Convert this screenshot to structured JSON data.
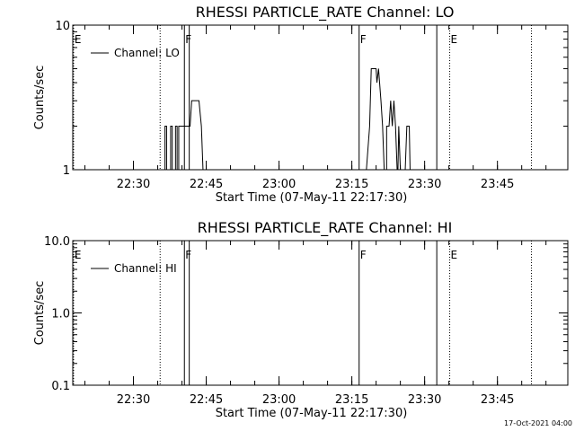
{
  "footer": {
    "timestamp": "17-Oct-2021 04:00"
  },
  "chart_data": [
    {
      "type": "line",
      "title": "RHESSI PARTICLE_RATE Channel: LO",
      "xlabel": "Start Time (07-May-11 22:17:30)",
      "ylabel": "Counts/sec",
      "yscale": "log",
      "ylim": [
        1,
        10
      ],
      "yticks": [
        1,
        10
      ],
      "ytick_labels": [
        "1",
        "10"
      ],
      "xlim": [
        "22:17:30",
        "23:59:30"
      ],
      "xticks": [
        "22:30",
        "22:45",
        "23:00",
        "23:15",
        "23:30",
        "23:45"
      ],
      "legend": {
        "position": "top-left",
        "entries": [
          "Channel: LO"
        ]
      },
      "markers": [
        {
          "time": "22:17:40",
          "label": "E",
          "style": "dotted"
        },
        {
          "time": "22:35:30",
          "label": "",
          "style": "dotted"
        },
        {
          "time": "22:40:30",
          "label": "F",
          "style": "solid"
        },
        {
          "time": "22:41:30",
          "label": "",
          "style": "solid"
        },
        {
          "time": "23:16:30",
          "label": "F",
          "style": "solid"
        },
        {
          "time": "23:32:30",
          "label": "",
          "style": "solid"
        },
        {
          "time": "23:35:10",
          "label": "E",
          "style": "dotted"
        },
        {
          "time": "23:52:00",
          "label": "",
          "style": "dotted"
        }
      ],
      "series": [
        {
          "name": "Channel: LO",
          "points": [
            [
              "22:35:00",
              1
            ],
            [
              "22:36:30",
              1
            ],
            [
              "22:36:30",
              2
            ],
            [
              "22:36:50",
              2
            ],
            [
              "22:36:50",
              1
            ],
            [
              "22:37:40",
              1
            ],
            [
              "22:37:40",
              2
            ],
            [
              "22:38:00",
              2
            ],
            [
              "22:38:00",
              1
            ],
            [
              "22:38:40",
              1
            ],
            [
              "22:38:40",
              2
            ],
            [
              "22:39:00",
              2
            ],
            [
              "22:39:00",
              1
            ],
            [
              "22:39:20",
              1
            ],
            [
              "22:39:20",
              2
            ],
            [
              "22:41:40",
              2
            ],
            [
              "22:42:00",
              3
            ],
            [
              "22:43:30",
              3
            ],
            [
              "22:44:00",
              2
            ],
            [
              "22:44:20",
              1
            ],
            [
              "23:18:00",
              1
            ],
            [
              "23:18:40",
              2
            ],
            [
              "23:19:00",
              5
            ],
            [
              "23:20:00",
              5
            ],
            [
              "23:20:10",
              4
            ],
            [
              "23:20:30",
              5
            ],
            [
              "23:21:00",
              3
            ],
            [
              "23:21:20",
              2
            ],
            [
              "23:21:40",
              1
            ],
            [
              "23:22:10",
              1
            ],
            [
              "23:22:10",
              2
            ],
            [
              "23:22:40",
              2
            ],
            [
              "23:23:00",
              3
            ],
            [
              "23:23:20",
              2
            ],
            [
              "23:23:40",
              3
            ],
            [
              "23:24:00",
              2
            ],
            [
              "23:24:20",
              1
            ],
            [
              "23:24:30",
              1
            ],
            [
              "23:24:40",
              2
            ],
            [
              "23:25:00",
              1
            ],
            [
              "23:26:00",
              1
            ],
            [
              "23:26:20",
              2
            ],
            [
              "23:26:50",
              2
            ],
            [
              "23:27:00",
              1
            ]
          ]
        }
      ]
    },
    {
      "type": "line",
      "title": "RHESSI PARTICLE_RATE Channel: HI",
      "xlabel": "Start Time (07-May-11 22:17:30)",
      "ylabel": "Counts/sec",
      "yscale": "log",
      "ylim": [
        0.1,
        10
      ],
      "yticks": [
        0.1,
        1,
        10
      ],
      "ytick_labels": [
        "0.1",
        "1.0",
        "10.0"
      ],
      "xlim": [
        "22:17:30",
        "23:59:30"
      ],
      "xticks": [
        "22:30",
        "22:45",
        "23:00",
        "23:15",
        "23:30",
        "23:45"
      ],
      "legend": {
        "position": "top-left",
        "entries": [
          "Channel: HI"
        ]
      },
      "markers": [
        {
          "time": "22:17:40",
          "label": "E",
          "style": "dotted"
        },
        {
          "time": "22:35:30",
          "label": "",
          "style": "dotted"
        },
        {
          "time": "22:40:30",
          "label": "F",
          "style": "solid"
        },
        {
          "time": "22:41:30",
          "label": "",
          "style": "solid"
        },
        {
          "time": "23:16:30",
          "label": "F",
          "style": "solid"
        },
        {
          "time": "23:32:30",
          "label": "",
          "style": "solid"
        },
        {
          "time": "23:35:10",
          "label": "E",
          "style": "dotted"
        },
        {
          "time": "23:52:00",
          "label": "",
          "style": "dotted"
        }
      ],
      "series": [
        {
          "name": "Channel: HI",
          "points": []
        }
      ]
    }
  ]
}
